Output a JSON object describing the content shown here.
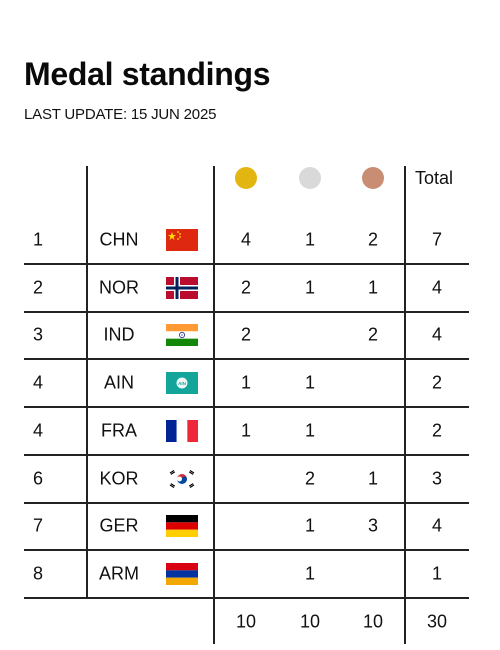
{
  "title": "Medal standings",
  "subtitle": "LAST UPDATE: 15 JUN 2025",
  "header": {
    "total": "Total",
    "gold_color": "#e3b511",
    "silver_color": "#d9d9d9",
    "bronze_color": "#c88d72"
  },
  "rows": [
    {
      "rank": "1",
      "country": "CHN",
      "flag": "china-flag-icon",
      "gold": "4",
      "silver": "1",
      "bronze": "2",
      "total": "7"
    },
    {
      "rank": "2",
      "country": "NOR",
      "flag": "norway-flag-icon",
      "gold": "2",
      "silver": "1",
      "bronze": "1",
      "total": "4"
    },
    {
      "rank": "3",
      "country": "IND",
      "flag": "india-flag-icon",
      "gold": "2",
      "silver": "",
      "bronze": "2",
      "total": "4"
    },
    {
      "rank": "4",
      "country": "AIN",
      "flag": "ain-flag-icon",
      "gold": "1",
      "silver": "1",
      "bronze": "",
      "total": "2"
    },
    {
      "rank": "4",
      "country": "FRA",
      "flag": "france-flag-icon",
      "gold": "1",
      "silver": "1",
      "bronze": "",
      "total": "2"
    },
    {
      "rank": "6",
      "country": "KOR",
      "flag": "south-korea-flag-icon",
      "gold": "",
      "silver": "2",
      "bronze": "1",
      "total": "3"
    },
    {
      "rank": "7",
      "country": "GER",
      "flag": "germany-flag-icon",
      "gold": "",
      "silver": "1",
      "bronze": "3",
      "total": "4"
    },
    {
      "rank": "8",
      "country": "ARM",
      "flag": "armenia-flag-icon",
      "gold": "",
      "silver": "1",
      "bronze": "",
      "total": "1"
    }
  ],
  "totals": {
    "gold": "10",
    "silver": "10",
    "bronze": "10",
    "total": "30"
  }
}
